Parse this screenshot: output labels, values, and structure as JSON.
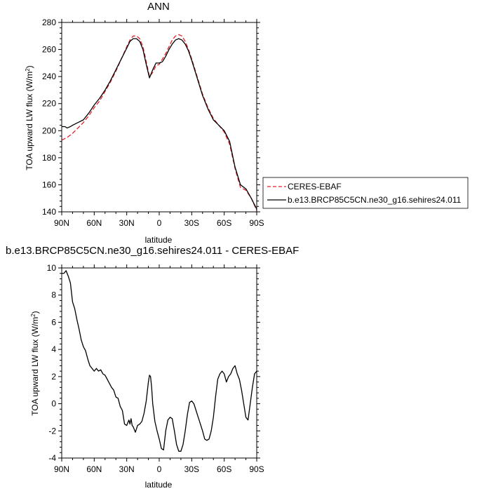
{
  "chart_data": [
    {
      "type": "line",
      "title": "ANN",
      "xlabel": "latitude",
      "ylabel": "TOA upward LW flux (W/m",
      "ylabel_sup": "2",
      "ylabel_end": ")",
      "xlim": [
        90,
        -90
      ],
      "ylim": [
        140,
        280
      ],
      "xticks": [
        {
          "value": 90,
          "label": "90N"
        },
        {
          "value": 60,
          "label": "60N"
        },
        {
          "value": 30,
          "label": "30N"
        },
        {
          "value": 0,
          "label": "0"
        },
        {
          "value": -30,
          "label": "30S"
        },
        {
          "value": -60,
          "label": "60S"
        },
        {
          "value": -90,
          "label": "90S"
        }
      ],
      "yticks": [
        140,
        160,
        180,
        200,
        220,
        240,
        260,
        280
      ],
      "grid": false,
      "legend_position": "right",
      "series": [
        {
          "name": "CERES-EBAF",
          "color": "#e8202a",
          "dash": true,
          "x": [
            90,
            85,
            80,
            75,
            70,
            65,
            60,
            55,
            50,
            45,
            40,
            35,
            30,
            27,
            24,
            21,
            18,
            15,
            12,
            9,
            6,
            3,
            0,
            -3,
            -6,
            -9,
            -12,
            -15,
            -18,
            -21,
            -24,
            -27,
            -30,
            -35,
            -40,
            -45,
            -50,
            -55,
            -60,
            -65,
            -70,
            -75,
            -80,
            -85,
            -90
          ],
          "y": [
            193,
            195,
            198,
            202,
            206,
            211,
            217,
            222,
            229,
            236,
            244,
            253,
            262,
            267,
            270,
            270,
            268,
            262,
            251,
            240,
            243,
            248,
            249,
            253,
            257,
            262,
            267,
            270,
            271,
            270,
            266,
            260,
            253,
            240,
            227,
            217,
            209,
            204,
            199,
            190,
            172,
            158,
            156,
            150,
            141
          ]
        },
        {
          "name": "b.e13.BRCP85C5CN.ne30_g16.sehires24.011",
          "color": "#000000",
          "dash": false,
          "x": [
            90,
            87,
            85,
            82,
            80,
            75,
            70,
            65,
            60,
            55,
            50,
            45,
            40,
            35,
            30,
            27,
            24,
            21,
            18,
            15,
            12,
            9,
            6,
            3,
            0,
            -3,
            -6,
            -9,
            -12,
            -15,
            -18,
            -21,
            -24,
            -27,
            -30,
            -35,
            -40,
            -45,
            -50,
            -55,
            -60,
            -65,
            -70,
            -75,
            -80,
            -85,
            -90
          ],
          "y": [
            203,
            203,
            202,
            203,
            204,
            206,
            208,
            213,
            219,
            224,
            230,
            237,
            245,
            253,
            261,
            266,
            268,
            268,
            266,
            260,
            249,
            239,
            245,
            250,
            250,
            251,
            255,
            260,
            264,
            267,
            268,
            267,
            264,
            259,
            252,
            239,
            226,
            216,
            208,
            204,
            200,
            192,
            173,
            160,
            157,
            150,
            142
          ]
        }
      ]
    },
    {
      "type": "line",
      "title": "b.e13.BRCP85C5CN.ne30_g16.sehires24.011 - CERES-EBAF",
      "xlabel": "latitude",
      "ylabel": "TOA upward LW flux (W/m",
      "ylabel_sup": "2",
      "ylabel_end": ")",
      "xlim": [
        90,
        -90
      ],
      "ylim": [
        -4,
        10
      ],
      "xticks": [
        {
          "value": 90,
          "label": "90N"
        },
        {
          "value": 60,
          "label": "60N"
        },
        {
          "value": 30,
          "label": "30N"
        },
        {
          "value": 0,
          "label": "0"
        },
        {
          "value": -30,
          "label": "30S"
        },
        {
          "value": -60,
          "label": "60S"
        },
        {
          "value": -90,
          "label": "90S"
        }
      ],
      "yticks": [
        -4,
        -2,
        0,
        2,
        4,
        6,
        8,
        10
      ],
      "grid": false,
      "series": [
        {
          "color": "#000000",
          "dash": false,
          "x": [
            90,
            88,
            86,
            84,
            82,
            80,
            78,
            76,
            74,
            72,
            70,
            68,
            66,
            64,
            62,
            60,
            58,
            56,
            54,
            52,
            50,
            48,
            46,
            44,
            42,
            40,
            38,
            36,
            34,
            32,
            30,
            28,
            27,
            26,
            25,
            24,
            22,
            20,
            18,
            16,
            14,
            12,
            11,
            10,
            9,
            8,
            7,
            6,
            4,
            2,
            0,
            -2,
            -4,
            -6,
            -8,
            -10,
            -12,
            -14,
            -16,
            -18,
            -20,
            -22,
            -24,
            -26,
            -28,
            -30,
            -32,
            -34,
            -36,
            -38,
            -40,
            -42,
            -44,
            -46,
            -48,
            -50,
            -52,
            -54,
            -56,
            -58,
            -60,
            -62,
            -64,
            -66,
            -68,
            -70,
            -72,
            -74,
            -76,
            -78,
            -80,
            -82,
            -84,
            -86,
            -88,
            -90
          ],
          "y": [
            9.6,
            9.6,
            9.8,
            9.4,
            8.9,
            7.5,
            7.0,
            6.2,
            5.5,
            4.7,
            4.2,
            3.9,
            3.3,
            2.8,
            2.6,
            2.4,
            2.6,
            2.4,
            2.5,
            2.2,
            2.1,
            1.8,
            1.5,
            1.2,
            1.0,
            0.5,
            0.4,
            -0.2,
            -0.5,
            -1.5,
            -1.6,
            -1.2,
            -1.5,
            -1.1,
            -1.6,
            -1.7,
            -2.1,
            -1.6,
            -1.5,
            -1.3,
            -0.7,
            0.2,
            0.9,
            1.6,
            2.1,
            2.0,
            1.2,
            0.0,
            -1.3,
            -2.0,
            -2.6,
            -3.3,
            -3.4,
            -2.0,
            -1.2,
            -1.0,
            -1.1,
            -2.0,
            -3.0,
            -3.5,
            -3.5,
            -3.0,
            -2.0,
            -0.8,
            0.1,
            0.2,
            0.0,
            -0.5,
            -1.0,
            -1.5,
            -2.0,
            -2.6,
            -2.7,
            -2.6,
            -2.0,
            -1.0,
            0.5,
            1.8,
            2.2,
            2.4,
            2.2,
            1.6,
            2.0,
            2.2,
            2.6,
            2.8,
            2.2,
            1.8,
            1.0,
            0.0,
            -1.0,
            -1.2,
            0.0,
            1.2,
            2.2,
            2.4
          ]
        }
      ]
    }
  ]
}
